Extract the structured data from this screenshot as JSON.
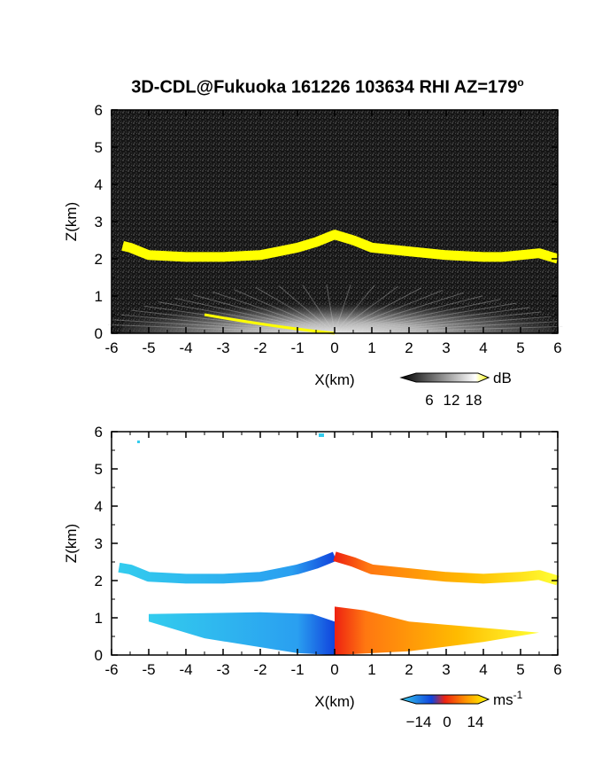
{
  "title": {
    "main": "3D-CDL@Fukuoka 161226 103634 RHI AZ=179",
    "sup": "o"
  },
  "chart_data": [
    {
      "type": "heatmap",
      "name": "backscatter-panel",
      "xlabel": "X(km)",
      "ylabel": "Z(km)",
      "xlim": [
        -6,
        6
      ],
      "ylim": [
        0,
        6
      ],
      "xticks": [
        "-6",
        "-5",
        "-4",
        "-3",
        "-2",
        "-1",
        "0",
        "1",
        "2",
        "3",
        "4",
        "5",
        "6"
      ],
      "yticks": [
        "0",
        "1",
        "2",
        "3",
        "4",
        "5",
        "6"
      ],
      "colorbar": {
        "unit": "dB",
        "ticks": [
          "6",
          "12",
          "18"
        ],
        "range": [
          0,
          20
        ],
        "colors": [
          "#000000",
          "#ffffff",
          "#ffff00"
        ]
      },
      "features": {
        "cloud_base_layer": {
          "color": "#ffff00",
          "points": [
            [
              -5.7,
              2.35
            ],
            [
              -5.5,
              2.3
            ],
            [
              -5.0,
              2.1
            ],
            [
              -4.0,
              2.05
            ],
            [
              -3.0,
              2.05
            ],
            [
              -2.0,
              2.1
            ],
            [
              -1.5,
              2.2
            ],
            [
              -1.0,
              2.3
            ],
            [
              -0.5,
              2.45
            ],
            [
              0.0,
              2.65
            ],
            [
              0.5,
              2.5
            ],
            [
              1.0,
              2.3
            ],
            [
              2.0,
              2.2
            ],
            [
              3.0,
              2.1
            ],
            [
              4.0,
              2.05
            ],
            [
              4.5,
              2.05
            ],
            [
              5.0,
              2.1
            ],
            [
              5.5,
              2.15
            ],
            [
              6.0,
              2.0
            ]
          ]
        },
        "surface_echo": {
          "color": "#ffff00",
          "x_range": [
            -3.5,
            0.0
          ]
        }
      }
    },
    {
      "type": "heatmap",
      "name": "doppler-velocity-panel",
      "xlabel": "X(km)",
      "ylabel": "Z(km)",
      "xlim": [
        -6,
        6
      ],
      "ylim": [
        0,
        6
      ],
      "xticks": [
        "-6",
        "-5",
        "-4",
        "-3",
        "-2",
        "-1",
        "0",
        "1",
        "2",
        "3",
        "4",
        "5",
        "6"
      ],
      "yticks": [
        "0",
        "1",
        "2",
        "3",
        "4",
        "5",
        "6"
      ],
      "colorbar": {
        "unit": "ms",
        "unit_sup": "-1",
        "ticks": [
          "−14",
          "0",
          "14"
        ],
        "range": [
          -20,
          20
        ],
        "colors": [
          "#33ccee",
          "#1144dd",
          "#ee2211",
          "#ff9900",
          "#ffff00"
        ]
      },
      "features": {
        "cloud_base_layer": {
          "points": [
            [
              -5.8,
              2.35
            ],
            [
              -5.5,
              2.3
            ],
            [
              -5.0,
              2.1
            ],
            [
              -4.0,
              2.05
            ],
            [
              -3.0,
              2.05
            ],
            [
              -2.0,
              2.1
            ],
            [
              -1.5,
              2.2
            ],
            [
              -1.0,
              2.3
            ],
            [
              -0.5,
              2.45
            ],
            [
              0.0,
              2.65
            ],
            [
              0.5,
              2.5
            ],
            [
              1.0,
              2.3
            ],
            [
              2.0,
              2.2
            ],
            [
              3.0,
              2.1
            ],
            [
              4.0,
              2.05
            ],
            [
              5.0,
              2.1
            ],
            [
              5.5,
              2.15
            ],
            [
              6.0,
              2.0
            ]
          ]
        },
        "lower_layer": {
          "x_range": [
            -5.0,
            5.5
          ],
          "z_range": [
            0.0,
            1.2
          ]
        }
      }
    }
  ]
}
